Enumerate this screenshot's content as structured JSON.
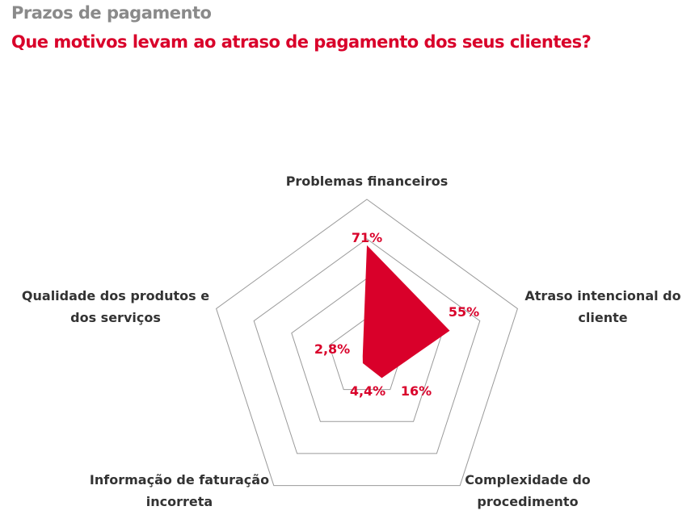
{
  "header": {
    "supertitle": "Prazos de pagamento",
    "title": "Que motivos levam ao atraso de pagamento dos seus clientes?"
  },
  "chart_data": {
    "type": "radar",
    "title": "Que motivos levam ao atraso de pagamento dos seus clientes?",
    "categories": [
      [
        "Problemas financeiros"
      ],
      [
        "Atraso intencional do",
        "cliente"
      ],
      [
        "Complexidade do",
        "procedimento"
      ],
      [
        "Informação de faturação",
        "incorreta"
      ],
      [
        "Qualidade dos produtos e",
        "dos serviços"
      ]
    ],
    "values": [
      71,
      55,
      16,
      4.4,
      2.8
    ],
    "value_labels": [
      "71%",
      "55%",
      "16%",
      "4,4%",
      "2,8%"
    ],
    "rlim": [
      0,
      100
    ],
    "rings": [
      25,
      50,
      75,
      100
    ],
    "color": "#d9002a",
    "grid_color": "#9a9a9a"
  }
}
